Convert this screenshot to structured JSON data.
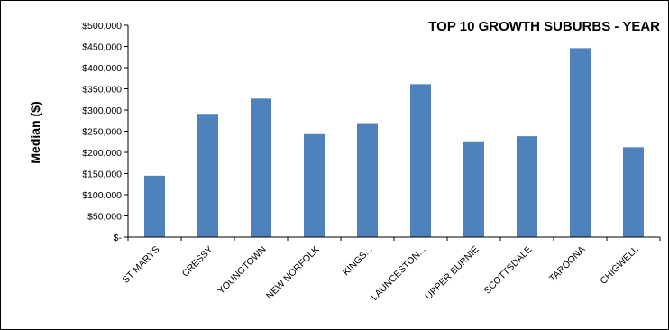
{
  "chart_data": {
    "type": "bar",
    "title": "TOP 10 GROWTH SUBURBS - YEAR",
    "ylabel": "Median ($)",
    "xlabel": "",
    "ylim": [
      0,
      500000
    ],
    "yticks": [
      0,
      50000,
      100000,
      150000,
      200000,
      250000,
      300000,
      350000,
      400000,
      450000,
      500000
    ],
    "ytick_labels": [
      "$-",
      "$50,000",
      "$100,000",
      "$150,000",
      "$200,000",
      "$250,000",
      "$300,000",
      "$350,000",
      "$400,000",
      "$450,000",
      "$500,000"
    ],
    "categories": [
      "ST MARYS",
      "CRESSY",
      "YOUNGTOWN",
      "NEW NORFOLK",
      "KINGS...",
      "LAUNCESTON...",
      "UPPER BURNIE",
      "SCOTTSDALE",
      "TAROONA",
      "CHIGWELL"
    ],
    "values": [
      145000,
      291000,
      327000,
      243000,
      269000,
      361000,
      226000,
      238000,
      446000,
      212000
    ],
    "bar_color": "#4F81BD",
    "grid": false,
    "legend": "none"
  }
}
